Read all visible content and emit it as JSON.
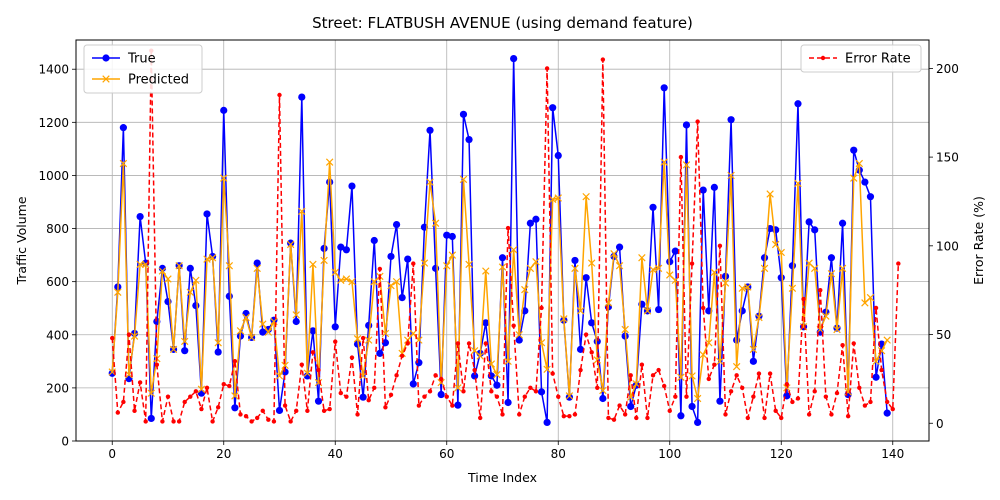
{
  "chart_data": {
    "type": "line",
    "title": "Street: FLATBUSH AVENUE (using demand feature)",
    "xlabel": "Time Index",
    "ylabel": "Traffic Volume",
    "y2label": "Error Rate (%)",
    "xlim": [
      -6.5,
      146.5
    ],
    "ylim": [
      0,
      1510
    ],
    "y2lim": [
      -10,
      216
    ],
    "xticks": [
      0,
      20,
      40,
      60,
      80,
      100,
      120,
      140
    ],
    "yticks": [
      0,
      200,
      400,
      600,
      800,
      1000,
      1200,
      1400
    ],
    "y2ticks": [
      0,
      50,
      100,
      150,
      200
    ],
    "grid": true,
    "legend_left": {
      "placement": "upper-left",
      "entries": [
        "True",
        "Predicted"
      ]
    },
    "legend_right": {
      "placement": "upper-right",
      "entries": [
        "Error Rate"
      ]
    },
    "series": [
      {
        "name": "True",
        "color": "#0000ff",
        "axis": "left",
        "marker": "circle",
        "style": "solid",
        "values": [
          255,
          580,
          1180,
          235,
          405,
          845,
          670,
          85,
          450,
          650,
          525,
          345,
          660,
          340,
          650,
          510,
          180,
          855,
          695,
          335,
          1245,
          545,
          125,
          395,
          480,
          390,
          670,
          410,
          420,
          455,
          115,
          260,
          745,
          450,
          1295,
          245,
          415,
          150,
          725,
          975,
          430,
          730,
          720,
          960,
          365,
          165,
          435,
          755,
          330,
          370,
          695,
          815,
          540,
          685,
          215,
          295,
          805,
          1170,
          650,
          175,
          775,
          770,
          135,
          1230,
          1135,
          245,
          330,
          445,
          245,
          210,
          690,
          145,
          1440,
          380,
          490,
          820,
          835,
          185,
          70,
          1255,
          1075,
          455,
          165,
          680,
          345,
          615,
          445,
          375,
          160,
          505,
          695,
          730,
          395,
          130,
          210,
          515,
          490,
          880,
          495,
          1330,
          675,
          715,
          95,
          1190,
          130,
          70,
          945,
          490,
          955,
          150,
          620,
          1210,
          380,
          490,
          580,
          300,
          470,
          690,
          800,
          795,
          615,
          170,
          660,
          1270,
          430,
          825,
          795,
          410,
          485,
          690,
          425,
          820,
          175,
          1095,
          1020,
          975,
          920,
          240,
          365,
          105
        ]
      },
      {
        "name": "Predicted",
        "color": "#ffa500",
        "axis": "left",
        "marker": "x",
        "style": "solid",
        "values": [
          260,
          560,
          1045,
          250,
          395,
          665,
          665,
          180,
          310,
          640,
          610,
          345,
          660,
          375,
          560,
          605,
          195,
          685,
          690,
          370,
          990,
          660,
          170,
          415,
          465,
          390,
          650,
          440,
          410,
          450,
          245,
          285,
          740,
          475,
          865,
          255,
          665,
          220,
          680,
          1050,
          635,
          605,
          610,
          600,
          385,
          245,
          380,
          600,
          620,
          405,
          585,
          600,
          330,
          380,
          405,
          380,
          670,
          975,
          820,
          220,
          660,
          700,
          200,
          985,
          665,
          340,
          320,
          640,
          290,
          250,
          655,
          300,
          720,
          400,
          570,
          650,
          675,
          370,
          270,
          910,
          915,
          460,
          170,
          650,
          490,
          920,
          670,
          305,
          190,
          520,
          705,
          660,
          420,
          165,
          215,
          690,
          490,
          645,
          650,
          1050,
          625,
          605,
          240,
          1040,
          245,
          160,
          325,
          370,
          635,
          300,
          595,
          1000,
          280,
          575,
          580,
          345,
          465,
          650,
          930,
          740,
          710,
          200,
          575,
          970,
          430,
          670,
          650,
          420,
          470,
          630,
          420,
          650,
          185,
          990,
          1045,
          520,
          540,
          300,
          340,
          380
        ]
      },
      {
        "name": "Error Rate",
        "color": "#ff0000",
        "axis": "right",
        "marker": "dot",
        "style": "dashed",
        "values": [
          48,
          6,
          12,
          50,
          7,
          23,
          1,
          210,
          33,
          1,
          15,
          1,
          1,
          12,
          15,
          18,
          8,
          20,
          1,
          9,
          22,
          21,
          35,
          5,
          4,
          1,
          3,
          7,
          2,
          1,
          185,
          10,
          1,
          7,
          33,
          7,
          40,
          30,
          7,
          8,
          46,
          17,
          15,
          37,
          5,
          48,
          13,
          20,
          87,
          9,
          16,
          27,
          38,
          45,
          90,
          10,
          15,
          18,
          27,
          25,
          15,
          10,
          45,
          18,
          45,
          30,
          3,
          45,
          18,
          15,
          5,
          110,
          55,
          5,
          15,
          20,
          18,
          65,
          200,
          28,
          15,
          4,
          4,
          5,
          30,
          50,
          40,
          20,
          205,
          3,
          2,
          10,
          5,
          27,
          3,
          33,
          3,
          27,
          30,
          21,
          7,
          15,
          150,
          15,
          90,
          170,
          65,
          25,
          33,
          100,
          5,
          18,
          27,
          20,
          3,
          15,
          28,
          3,
          28,
          7,
          3,
          22,
          12,
          14,
          70,
          5,
          18,
          75,
          15,
          5,
          17,
          44,
          4,
          45,
          20,
          10,
          12,
          65,
          30,
          12,
          8,
          90
        ]
      }
    ]
  }
}
